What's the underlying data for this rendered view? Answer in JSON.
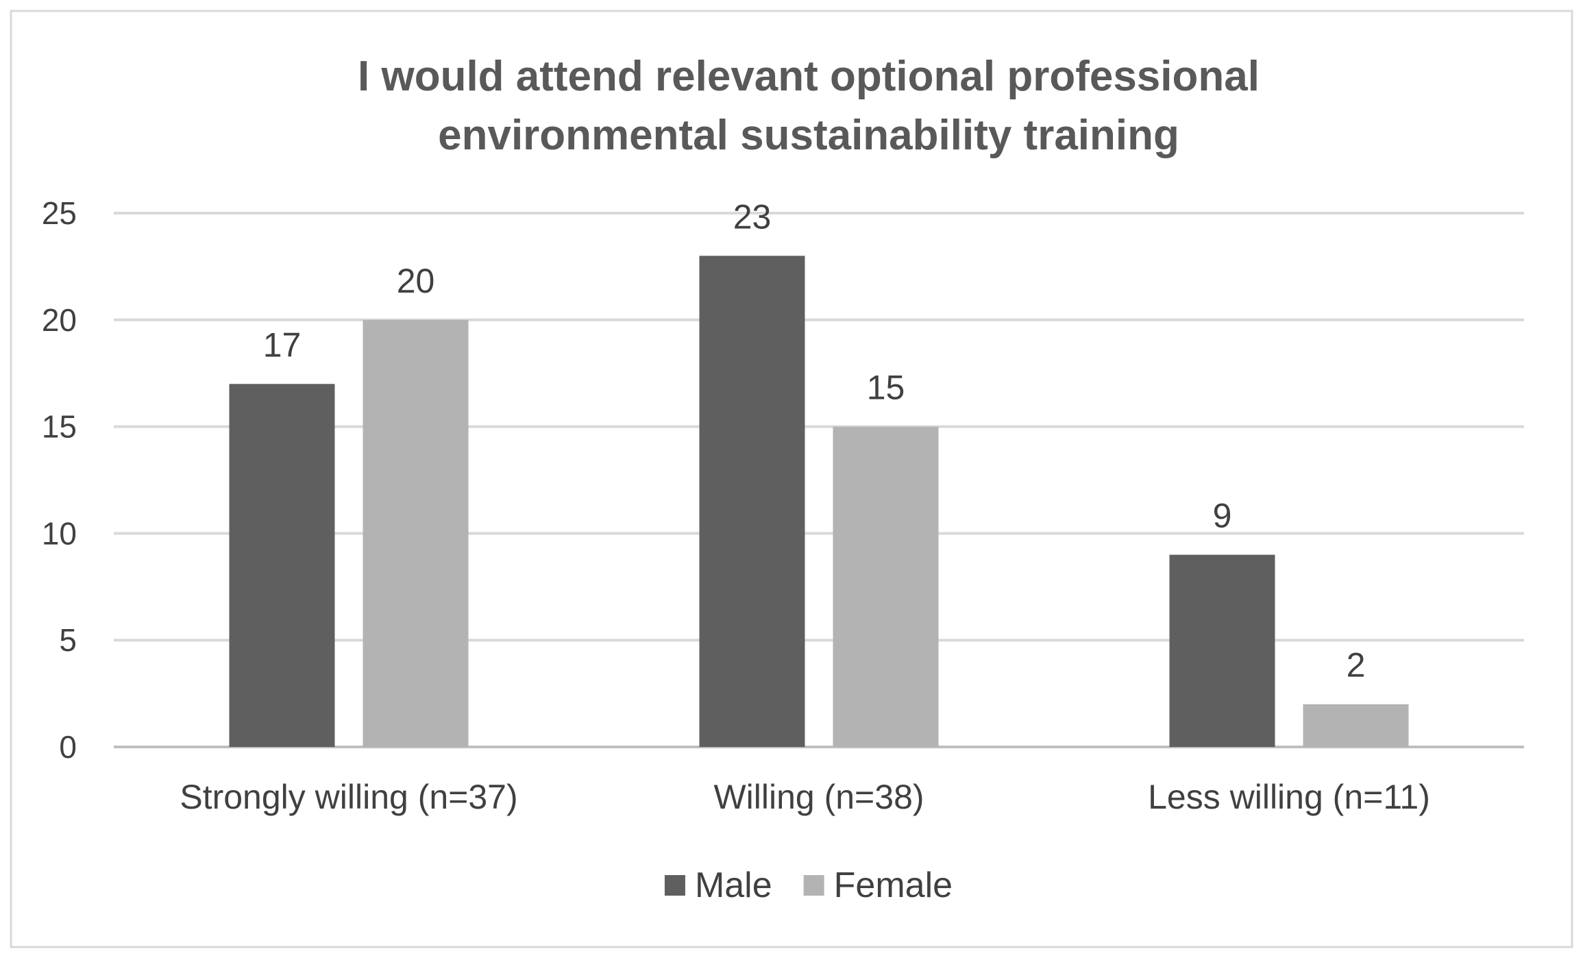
{
  "chart_data": {
    "type": "bar",
    "title_lines": [
      "I would attend relevant optional professional",
      "environmental sustainability training"
    ],
    "categories": [
      "Strongly willing (n=37)",
      "Willing (n=38)",
      "Less willing (n=11)"
    ],
    "series": [
      {
        "name": "Male",
        "values": [
          17,
          23,
          9
        ],
        "color": "#5f5f5f"
      },
      {
        "name": "Female",
        "values": [
          20,
          15,
          2
        ],
        "color": "#b3b3b3"
      }
    ],
    "ylim": [
      0,
      25
    ],
    "yticks": [
      0,
      5,
      10,
      15,
      20,
      25
    ],
    "grid": true,
    "legend_position": "bottom",
    "data_labels": true
  }
}
